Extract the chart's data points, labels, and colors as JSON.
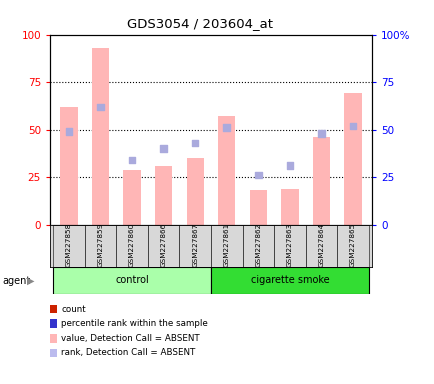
{
  "title": "GDS3054 / 203604_at",
  "samples": [
    "GSM227858",
    "GSM227859",
    "GSM227860",
    "GSM227866",
    "GSM227867",
    "GSM227861",
    "GSM227862",
    "GSM227863",
    "GSM227864",
    "GSM227865"
  ],
  "bar_values": [
    62,
    93,
    29,
    31,
    35,
    57,
    18,
    19,
    46,
    69
  ],
  "rank_values": [
    49,
    62,
    34,
    40,
    43,
    51,
    26,
    31,
    48,
    52
  ],
  "groups": [
    {
      "label": "control",
      "start": 0,
      "end": 5,
      "color": "#aaffaa"
    },
    {
      "label": "cigarette smoke",
      "start": 5,
      "end": 10,
      "color": "#33dd33"
    }
  ],
  "bar_color": "#ffb6b6",
  "rank_color_present": "#4444bb",
  "rank_color_absent": "#aaaadd",
  "absent_flags": [
    true,
    true,
    true,
    true,
    true,
    true,
    true,
    true,
    true,
    true
  ],
  "ylim": [
    0,
    100
  ],
  "yticks": [
    0,
    25,
    50,
    75,
    100
  ],
  "ytick_labels_left": [
    "0",
    "25",
    "50",
    "75",
    "100"
  ],
  "ytick_labels_right": [
    "0",
    "25",
    "50",
    "75",
    "100%"
  ],
  "agent_label": "agent",
  "legend_items": [
    {
      "color": "#cc2200",
      "label": "count"
    },
    {
      "color": "#3333cc",
      "label": "percentile rank within the sample"
    },
    {
      "color": "#ffb6b6",
      "label": "value, Detection Call = ABSENT"
    },
    {
      "color": "#bbbbee",
      "label": "rank, Detection Call = ABSENT"
    }
  ]
}
